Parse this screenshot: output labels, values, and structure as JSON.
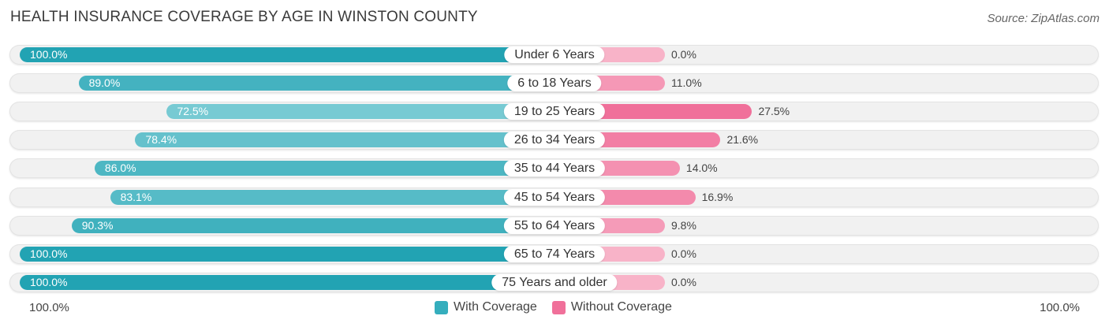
{
  "title": "HEALTH INSURANCE COVERAGE BY AGE IN WINSTON COUNTY",
  "source": "Source: ZipAtlas.com",
  "axis": {
    "left_label": "100.0%",
    "right_label": "100.0%"
  },
  "legend": [
    {
      "label": "With Coverage",
      "color": "#35aebd"
    },
    {
      "label": "Without Coverage",
      "color": "#f0709a"
    }
  ],
  "chart_data": {
    "type": "bar",
    "title": "HEALTH INSURANCE COVERAGE BY AGE IN WINSTON COUNTY",
    "orientation": "diverging-horizontal",
    "xlim": [
      0,
      100
    ],
    "categories": [
      "Under 6 Years",
      "6 to 18 Years",
      "19 to 25 Years",
      "26 to 34 Years",
      "35 to 44 Years",
      "45 to 54 Years",
      "55 to 64 Years",
      "65 to 74 Years",
      "75 Years and older"
    ],
    "series": [
      {
        "name": "With Coverage",
        "values": [
          100.0,
          89.0,
          72.5,
          78.4,
          86.0,
          83.1,
          90.3,
          100.0,
          100.0
        ],
        "labels": [
          "100.0%",
          "89.0%",
          "72.5%",
          "78.4%",
          "86.0%",
          "83.1%",
          "90.3%",
          "100.0%",
          "100.0%"
        ]
      },
      {
        "name": "Without Coverage",
        "values": [
          0.0,
          11.0,
          27.5,
          21.6,
          14.0,
          16.9,
          9.8,
          0.0,
          0.0
        ],
        "labels": [
          "0.0%",
          "11.0%",
          "27.5%",
          "21.6%",
          "14.0%",
          "16.9%",
          "9.8%",
          "0.0%",
          "0.0%"
        ]
      }
    ],
    "legend_position": "bottom-center"
  }
}
